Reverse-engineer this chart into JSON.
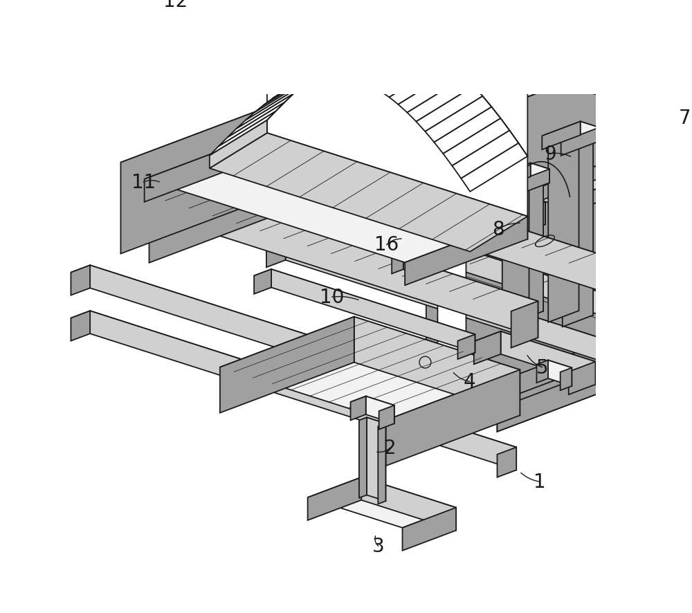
{
  "background_color": "#ffffff",
  "line_color": "#1a1a1a",
  "light_fill": "#f2f2f2",
  "mid_fill": "#d0d0d0",
  "dark_fill": "#a0a0a0",
  "figsize": [
    10.0,
    8.87
  ],
  "dpi": 100
}
